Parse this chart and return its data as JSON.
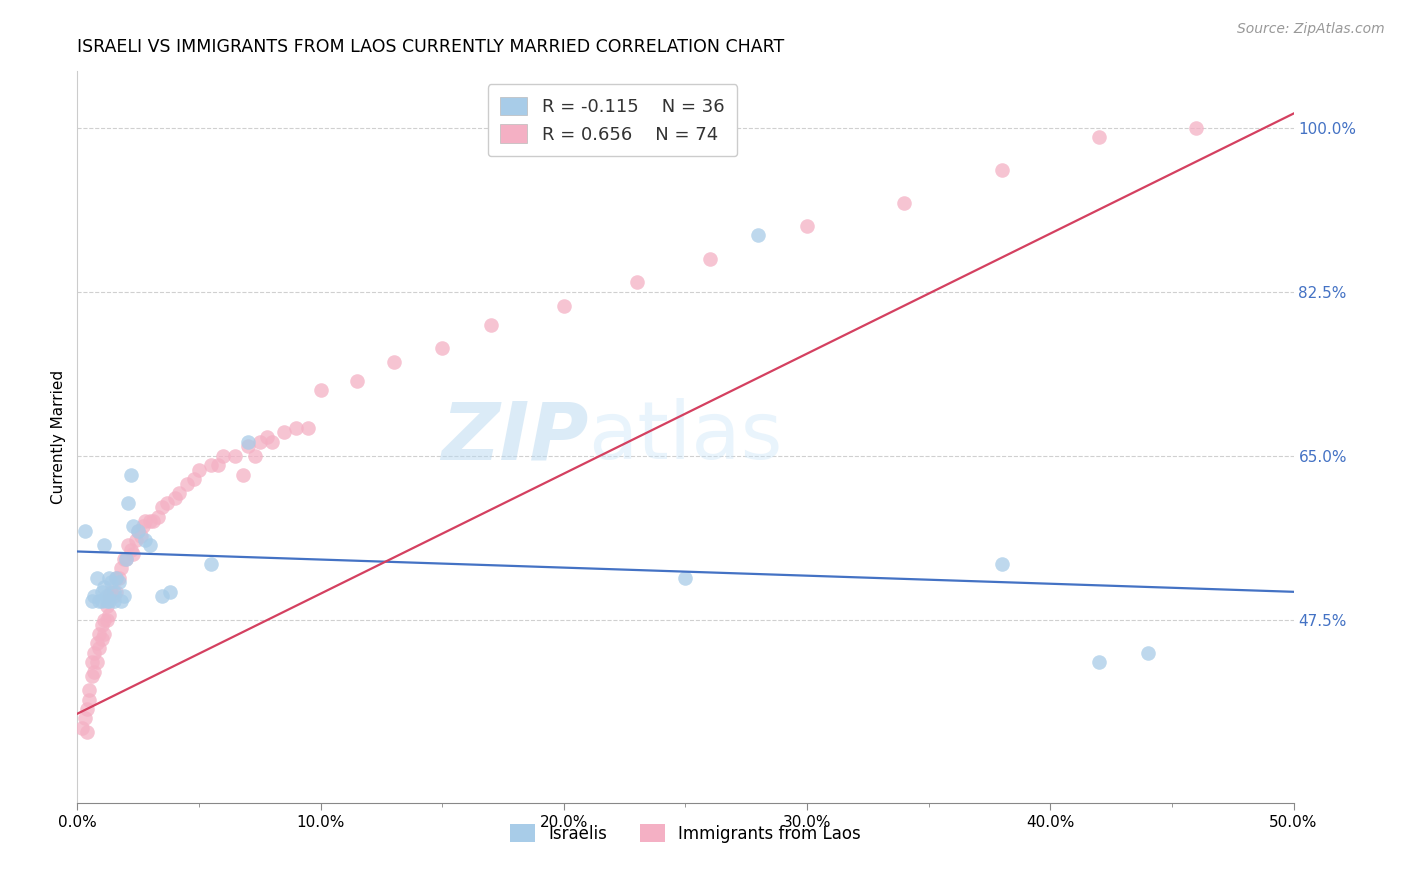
{
  "title": "ISRAELI VS IMMIGRANTS FROM LAOS CURRENTLY MARRIED CORRELATION CHART",
  "source": "Source: ZipAtlas.com",
  "ylabel": "Currently Married",
  "legend_label1": "Israelis",
  "legend_label2": "Immigrants from Laos",
  "R1": -0.115,
  "N1": 36,
  "R2": 0.656,
  "N2": 74,
  "color_israeli": "#a8cce8",
  "color_laos": "#f4b0c4",
  "line_color_israeli": "#4472c4",
  "line_color_laos": "#d44060",
  "ytick_labels": [
    "47.5%",
    "65.0%",
    "82.5%",
    "100.0%"
  ],
  "ytick_values": [
    0.475,
    0.65,
    0.825,
    1.0
  ],
  "xmin": 0.0,
  "xmax": 0.5,
  "ymin": 0.28,
  "ymax": 1.06,
  "watermark_text": "ZIPatlas",
  "israeli_x": [
    0.003,
    0.006,
    0.007,
    0.008,
    0.009,
    0.01,
    0.01,
    0.011,
    0.011,
    0.012,
    0.012,
    0.013,
    0.013,
    0.014,
    0.015,
    0.015,
    0.016,
    0.017,
    0.018,
    0.019,
    0.02,
    0.021,
    0.022,
    0.023,
    0.025,
    0.028,
    0.03,
    0.035,
    0.038,
    0.055,
    0.07,
    0.25,
    0.28,
    0.38,
    0.42,
    0.44
  ],
  "israeli_y": [
    0.57,
    0.495,
    0.5,
    0.52,
    0.495,
    0.505,
    0.495,
    0.51,
    0.555,
    0.495,
    0.5,
    0.495,
    0.52,
    0.515,
    0.495,
    0.505,
    0.52,
    0.515,
    0.495,
    0.5,
    0.54,
    0.6,
    0.63,
    0.575,
    0.57,
    0.56,
    0.555,
    0.5,
    0.505,
    0.535,
    0.665,
    0.52,
    0.885,
    0.535,
    0.43,
    0.44
  ],
  "laos_x": [
    0.002,
    0.003,
    0.004,
    0.004,
    0.005,
    0.005,
    0.006,
    0.006,
    0.007,
    0.007,
    0.008,
    0.008,
    0.009,
    0.009,
    0.01,
    0.01,
    0.011,
    0.011,
    0.012,
    0.012,
    0.013,
    0.013,
    0.014,
    0.015,
    0.016,
    0.016,
    0.017,
    0.018,
    0.019,
    0.02,
    0.021,
    0.022,
    0.023,
    0.024,
    0.025,
    0.026,
    0.027,
    0.028,
    0.03,
    0.031,
    0.033,
    0.035,
    0.037,
    0.04,
    0.042,
    0.045,
    0.048,
    0.05,
    0.055,
    0.058,
    0.06,
    0.065,
    0.068,
    0.07,
    0.073,
    0.075,
    0.078,
    0.08,
    0.085,
    0.09,
    0.095,
    0.1,
    0.115,
    0.13,
    0.15,
    0.17,
    0.2,
    0.23,
    0.26,
    0.3,
    0.34,
    0.38,
    0.42,
    0.46
  ],
  "laos_y": [
    0.36,
    0.37,
    0.355,
    0.38,
    0.39,
    0.4,
    0.415,
    0.43,
    0.42,
    0.44,
    0.43,
    0.45,
    0.445,
    0.46,
    0.455,
    0.47,
    0.46,
    0.475,
    0.475,
    0.49,
    0.48,
    0.5,
    0.505,
    0.5,
    0.505,
    0.52,
    0.52,
    0.53,
    0.54,
    0.54,
    0.555,
    0.55,
    0.545,
    0.56,
    0.57,
    0.565,
    0.575,
    0.58,
    0.58,
    0.58,
    0.585,
    0.595,
    0.6,
    0.605,
    0.61,
    0.62,
    0.625,
    0.635,
    0.64,
    0.64,
    0.65,
    0.65,
    0.63,
    0.66,
    0.65,
    0.665,
    0.67,
    0.665,
    0.675,
    0.68,
    0.68,
    0.72,
    0.73,
    0.75,
    0.765,
    0.79,
    0.81,
    0.835,
    0.86,
    0.895,
    0.92,
    0.955,
    0.99,
    1.0
  ],
  "israeli_trend_x": [
    0.0,
    0.5
  ],
  "israeli_trend_y": [
    0.548,
    0.505
  ],
  "laos_trend_x": [
    0.0,
    0.5
  ],
  "laos_trend_y": [
    0.375,
    1.015
  ]
}
